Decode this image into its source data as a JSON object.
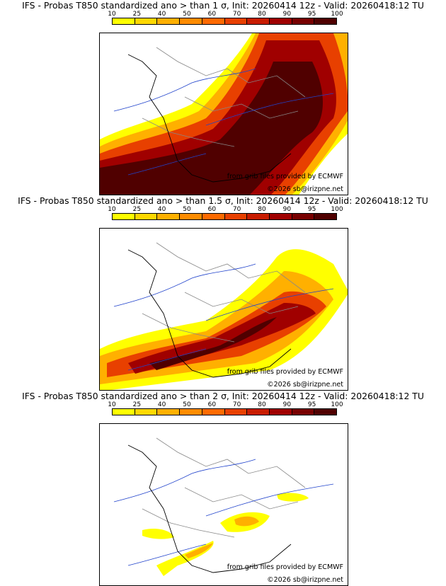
{
  "colorbar": {
    "ticks": [
      "10",
      "25",
      "40",
      "50",
      "60",
      "70",
      "80",
      "90",
      "95",
      "100"
    ],
    "colors": [
      "#ffff00",
      "#ffd800",
      "#ffb000",
      "#ff8c00",
      "#ff6a00",
      "#e84000",
      "#c81c00",
      "#a00000",
      "#780000",
      "#500000"
    ]
  },
  "credits": {
    "source": "from grib files provided by ECMWF",
    "copyright": "©2026 sb@irizpne.net"
  },
  "panels": [
    {
      "title": "IFS - Probas T850  standardized ano > than 1 σ, Init: 20260414 12z - Valid: 20260418:12 TU",
      "threshold": "1 σ"
    },
    {
      "title": "IFS - Probas T850  standardized ano > than 1.5 σ, Init: 20260414 12z - Valid: 20260418:12 TU",
      "threshold": "1.5 σ"
    },
    {
      "title": "IFS - Probas T850  standardized ano > than 2 σ, Init: 20260414 12z - Valid: 20260418:12 TU",
      "threshold": "2 σ"
    }
  ]
}
